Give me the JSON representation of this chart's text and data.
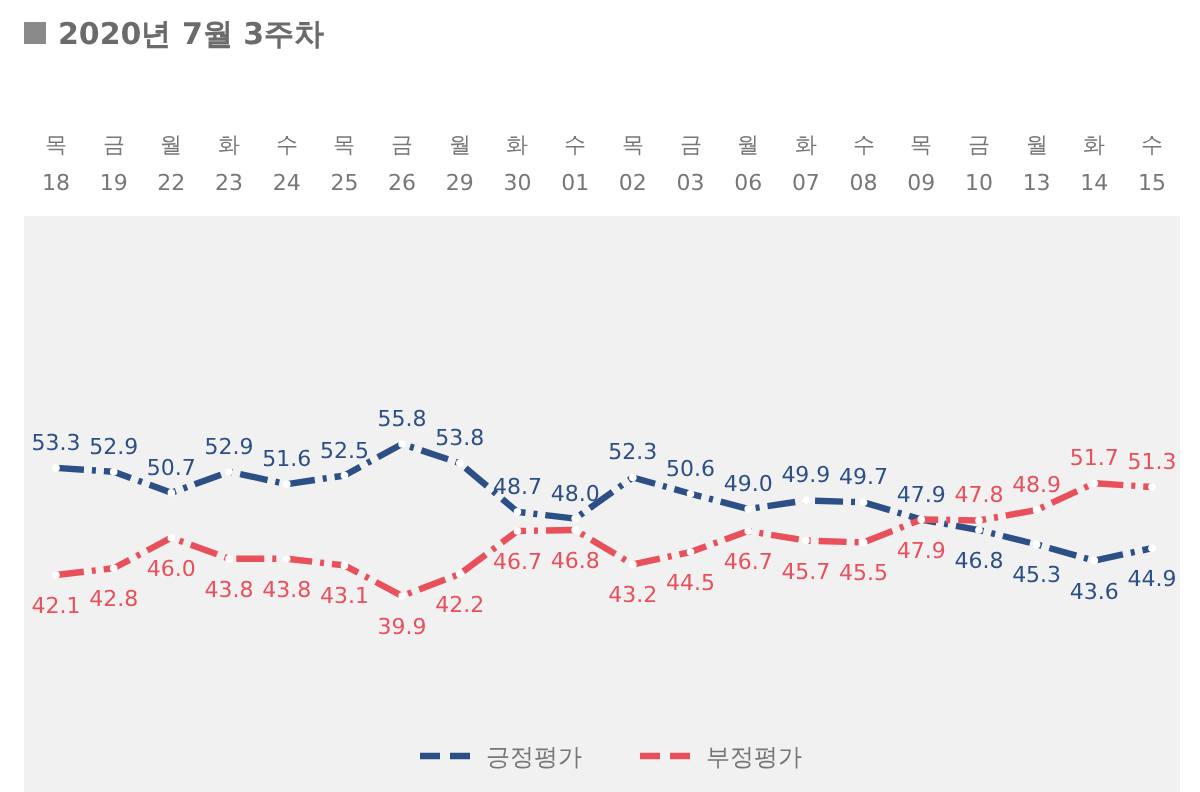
{
  "chart_data": {
    "type": "line",
    "title": "2020년 7월 3주차",
    "categories": [
      "목 18",
      "금 19",
      "월 22",
      "화 23",
      "수 24",
      "목 25",
      "금 26",
      "월 29",
      "화 30",
      "수 01",
      "목 02",
      "금 03",
      "월 06",
      "화 07",
      "수 08",
      "목 09",
      "금 10",
      "월 13",
      "화 14",
      "수 15"
    ],
    "series": [
      {
        "name": "긍정평가",
        "color": "#2c4f86",
        "values": [
          53.3,
          52.9,
          50.7,
          52.9,
          51.6,
          52.5,
          55.8,
          53.8,
          48.7,
          48.0,
          52.3,
          50.6,
          49.0,
          49.9,
          49.7,
          47.9,
          46.8,
          45.3,
          43.6,
          44.9
        ],
        "value_labels": [
          "53.3",
          "52.9",
          "50.7",
          "52.9",
          "51.6",
          "52.5",
          "55.8",
          "53.8",
          "48.7",
          "48.0",
          "52.3",
          "50.6",
          "49.0",
          "49.9",
          "49.7",
          "47.9",
          "46.8",
          "45.3",
          "43.6",
          "44.9"
        ]
      },
      {
        "name": "부정평가",
        "color": "#e8505b",
        "values": [
          42.1,
          42.8,
          46.0,
          43.8,
          43.8,
          43.1,
          39.9,
          42.2,
          46.7,
          46.8,
          43.2,
          44.5,
          46.7,
          45.7,
          45.5,
          47.9,
          47.8,
          48.9,
          51.7,
          51.3
        ],
        "value_labels": [
          "42.1",
          "42.8",
          "46.0",
          "43.8",
          "43.8",
          "43.1",
          "39.9",
          "42.2",
          "46.7",
          "46.8",
          "43.2",
          "44.5",
          "46.7",
          "45.7",
          "45.5",
          "47.9",
          "47.8",
          "48.9",
          "51.7",
          "51.3"
        ]
      }
    ],
    "legend": "bottom",
    "marker": "circle",
    "line_style": "dashed"
  }
}
